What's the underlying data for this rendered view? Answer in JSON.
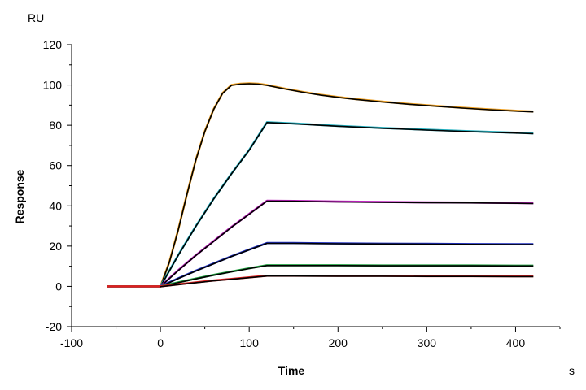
{
  "chart_data": {
    "type": "line",
    "title": "",
    "xlabel": "Time",
    "ylabel": "Response",
    "x_unit": "s",
    "y_unit": "RU",
    "xlim": [
      -100,
      450
    ],
    "ylim": [
      -20,
      120
    ],
    "x_ticks": [
      -100,
      0,
      100,
      200,
      300,
      400
    ],
    "y_ticks": [
      -20,
      0,
      20,
      40,
      60,
      80,
      100,
      120
    ],
    "grid": false,
    "legend": "none",
    "series": [
      {
        "color": "#f0a020",
        "fit_color": "#000000",
        "x": [
          -60,
          0,
          10,
          20,
          30,
          40,
          50,
          60,
          70,
          80,
          90,
          100,
          110,
          120,
          140,
          160,
          180,
          200,
          220,
          250,
          280,
          310,
          340,
          370,
          400,
          420
        ],
        "y": [
          0,
          0,
          12,
          28,
          46,
          63,
          77,
          88,
          96,
          100,
          100.6,
          100.8,
          100.6,
          100,
          98.2,
          96.6,
          95.2,
          94,
          93,
          91.7,
          90.6,
          89.6,
          88.7,
          87.9,
          87.2,
          86.8
        ]
      },
      {
        "color": "#20b0c0",
        "fit_color": "#000000",
        "x": [
          -60,
          0,
          20,
          40,
          60,
          80,
          100,
          120,
          150,
          200,
          250,
          300,
          350,
          400,
          420
        ],
        "y": [
          0,
          0,
          15.5,
          30,
          43.5,
          56,
          67.8,
          81.5,
          80.9,
          79.7,
          78.7,
          77.8,
          77,
          76.3,
          76
        ]
      },
      {
        "color": "#c020c0",
        "fit_color": "#000000",
        "x": [
          -60,
          0,
          20,
          40,
          60,
          80,
          100,
          120,
          150,
          200,
          250,
          300,
          350,
          400,
          420
        ],
        "y": [
          0,
          0,
          8,
          15.5,
          22.5,
          29.5,
          36,
          42.5,
          42.4,
          42.1,
          41.9,
          41.7,
          41.6,
          41.4,
          41.3
        ]
      },
      {
        "color": "#2030c0",
        "fit_color": "#000000",
        "x": [
          -60,
          0,
          20,
          40,
          60,
          80,
          100,
          120,
          150,
          200,
          250,
          300,
          350,
          400,
          420
        ],
        "y": [
          0,
          0,
          4,
          7.8,
          11.4,
          15,
          18.3,
          21.5,
          21.5,
          21.3,
          21.2,
          21.1,
          21,
          20.9,
          20.9
        ]
      },
      {
        "color": "#20a040",
        "fit_color": "#000000",
        "x": [
          -60,
          0,
          20,
          40,
          60,
          80,
          100,
          120,
          150,
          200,
          250,
          300,
          350,
          400,
          420
        ],
        "y": [
          0,
          0,
          2,
          3.9,
          5.7,
          7.4,
          9,
          10.5,
          10.5,
          10.5,
          10.4,
          10.4,
          10.4,
          10.3,
          10.3
        ]
      },
      {
        "color": "#e02020",
        "fit_color": "#000000",
        "x": [
          -60,
          0,
          20,
          40,
          60,
          80,
          100,
          120,
          150,
          200,
          250,
          300,
          350,
          400,
          420
        ],
        "y": [
          0,
          0,
          1,
          2,
          2.9,
          3.7,
          4.5,
          5.3,
          5.3,
          5.2,
          5.2,
          5.1,
          5.1,
          5,
          5
        ]
      }
    ]
  }
}
